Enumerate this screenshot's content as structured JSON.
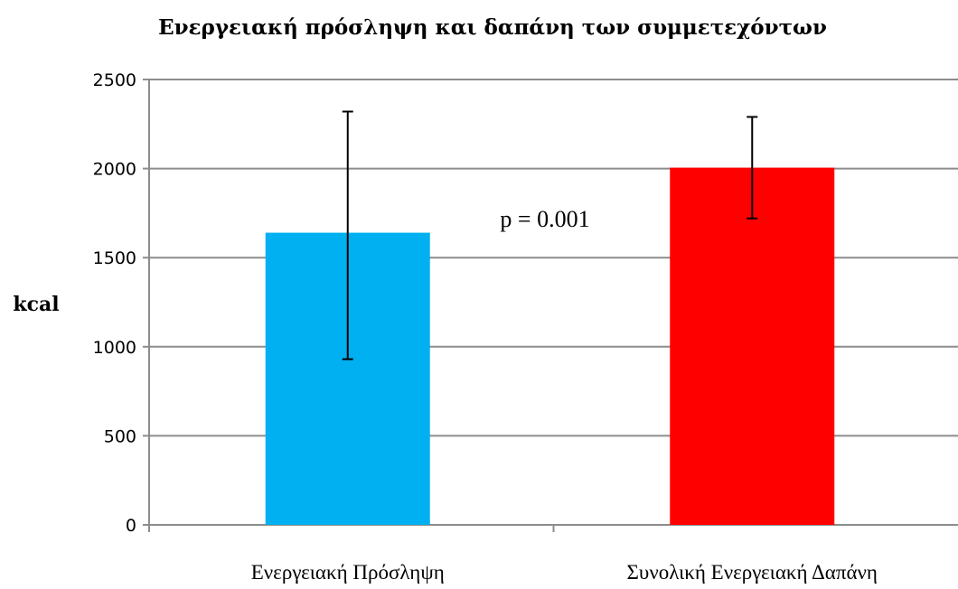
{
  "chart_data": {
    "type": "bar",
    "title": "Ενεργειακή πρόσληψη και δαπάνη των συμμετεχόντων",
    "ylabel": "kcal",
    "xlabel": "",
    "ylim": [
      0,
      2500
    ],
    "yticks": [
      "0",
      "500",
      "1000",
      "1500",
      "2000",
      "2500"
    ],
    "grid": true,
    "categories": [
      "Ενεργειακή Πρόσληψη",
      "Συνολική Ενεργειακή Δαπάνη"
    ],
    "values": [
      1640,
      2005
    ],
    "error_low": [
      930,
      1720
    ],
    "error_high": [
      2320,
      2290
    ],
    "colors": [
      "#00b0f0",
      "#ff0000"
    ],
    "annotation": "p = 0.001"
  }
}
